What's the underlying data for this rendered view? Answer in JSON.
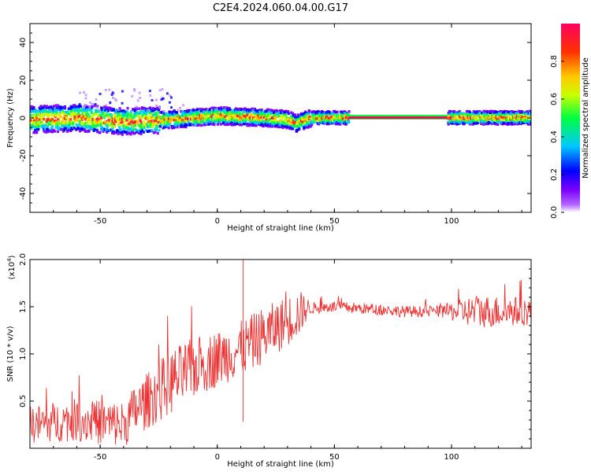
{
  "title": "C2E4.2024.060.04.00.G17",
  "chart_data": [
    {
      "type": "heatmap",
      "id": "spectrogram",
      "xlabel": "Height of straight line (km)",
      "ylabel": "Frequency (Hz)",
      "xlim": [
        -80,
        134
      ],
      "ylim": [
        -50,
        50
      ],
      "xticks": [
        -50,
        0,
        50,
        100
      ],
      "yticks": [
        -40,
        -20,
        0,
        20,
        40
      ],
      "colorbar": {
        "label": "Normalized spectral amplitude",
        "range": [
          0.0,
          1.0
        ],
        "ticks": [
          0.0,
          0.2,
          0.4,
          0.6,
          0.8
        ],
        "colormap": [
          "#ffffff",
          "#7a00ff",
          "#0000ff",
          "#00c8ff",
          "#00ff40",
          "#c8ff00",
          "#ffc800",
          "#ff3000",
          "#ff0060"
        ]
      },
      "ridge": {
        "description_points": [
          {
            "x": -80,
            "y": -1
          },
          {
            "x": -60,
            "y": 0
          },
          {
            "x": -40,
            "y": -2
          },
          {
            "x": -20,
            "y": -1
          },
          {
            "x": 0,
            "y": 1
          },
          {
            "x": 20,
            "y": 0
          },
          {
            "x": 30,
            "y": -1
          },
          {
            "x": 33,
            "y": -3
          },
          {
            "x": 40,
            "y": 0
          },
          {
            "x": 55,
            "y": 0
          },
          {
            "x": 100,
            "y": 0
          },
          {
            "x": 134,
            "y": 0
          }
        ],
        "flat_segment": [
          56,
          98
        ]
      }
    },
    {
      "type": "line",
      "id": "snr",
      "xlabel": "Height of straight line (km)",
      "ylabel": "SNR (10 * v/v)",
      "yscale_label": "(x10",
      "yscale_exp": "4",
      "yscale_close": ")",
      "xlim": [
        -80,
        134
      ],
      "ylim": [
        0,
        2.0
      ],
      "xticks": [
        -50,
        0,
        50,
        100
      ],
      "yticks": [
        0.5,
        1.0,
        1.5,
        2.0
      ],
      "ytick_labels": [
        "0.5",
        "1.0",
        "1.5",
        "2.0"
      ],
      "color": "#ee3333",
      "envelope_mean": [
        {
          "x": -80,
          "y": 0.25
        },
        {
          "x": -60,
          "y": 0.3
        },
        {
          "x": -40,
          "y": 0.25
        },
        {
          "x": -35,
          "y": 0.4
        },
        {
          "x": -20,
          "y": 0.7
        },
        {
          "x": -10,
          "y": 0.85
        },
        {
          "x": 0,
          "y": 0.95
        },
        {
          "x": 10,
          "y": 1.05
        },
        {
          "x": 20,
          "y": 1.2
        },
        {
          "x": 30,
          "y": 1.35
        },
        {
          "x": 38,
          "y": 1.48
        },
        {
          "x": 50,
          "y": 1.5
        },
        {
          "x": 80,
          "y": 1.45
        },
        {
          "x": 100,
          "y": 1.45
        },
        {
          "x": 134,
          "y": 1.45
        }
      ],
      "envelope_noise": [
        {
          "x": -80,
          "y": 0.2
        },
        {
          "x": -40,
          "y": 0.25
        },
        {
          "x": -20,
          "y": 0.35
        },
        {
          "x": 0,
          "y": 0.3
        },
        {
          "x": 20,
          "y": 0.3
        },
        {
          "x": 35,
          "y": 0.25
        },
        {
          "x": 40,
          "y": 0.06
        },
        {
          "x": 95,
          "y": 0.06
        },
        {
          "x": 110,
          "y": 0.18
        },
        {
          "x": 134,
          "y": 0.15
        }
      ],
      "spikes": [
        {
          "x": 11,
          "y": 2.0
        },
        {
          "x": 11,
          "y": 0.28
        }
      ]
    }
  ]
}
